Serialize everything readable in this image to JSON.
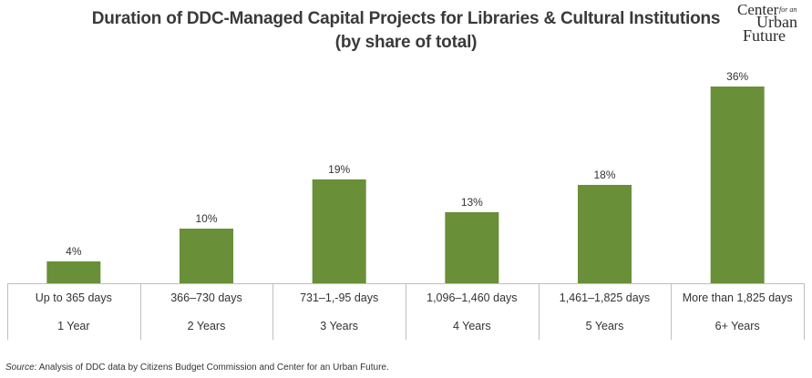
{
  "chart_data": {
    "type": "bar",
    "title": "Duration of DDC-Managed Capital Projects for Libraries & Cultural Institutions",
    "subtitle": "(by share of total)",
    "categories": [
      "Up to 365 days",
      "366–730 days",
      "731–1,-95 days",
      "1,096–1,460 days",
      "1,461–1,825 days",
      "More than 1,825 days"
    ],
    "category_groups": [
      "1 Year",
      "2 Years",
      "3 Years",
      "4 Years",
      "5 Years",
      "6+ Years"
    ],
    "values": [
      4,
      10,
      19,
      13,
      18,
      36
    ],
    "data_labels": [
      "4%",
      "10%",
      "19%",
      "13%",
      "18%",
      "36%"
    ],
    "unit": "%",
    "ylim": [
      0,
      40
    ],
    "grid": false,
    "legend": "none",
    "bar_color": "#6a8f39"
  },
  "source": {
    "prefix": "Source:",
    "text": " Analysis of DDC data by Citizens Budget Commission and Center for an Urban Future."
  },
  "logo": {
    "word1": "Center",
    "word2": "for an",
    "word3": "Urban",
    "word4": "Future"
  }
}
